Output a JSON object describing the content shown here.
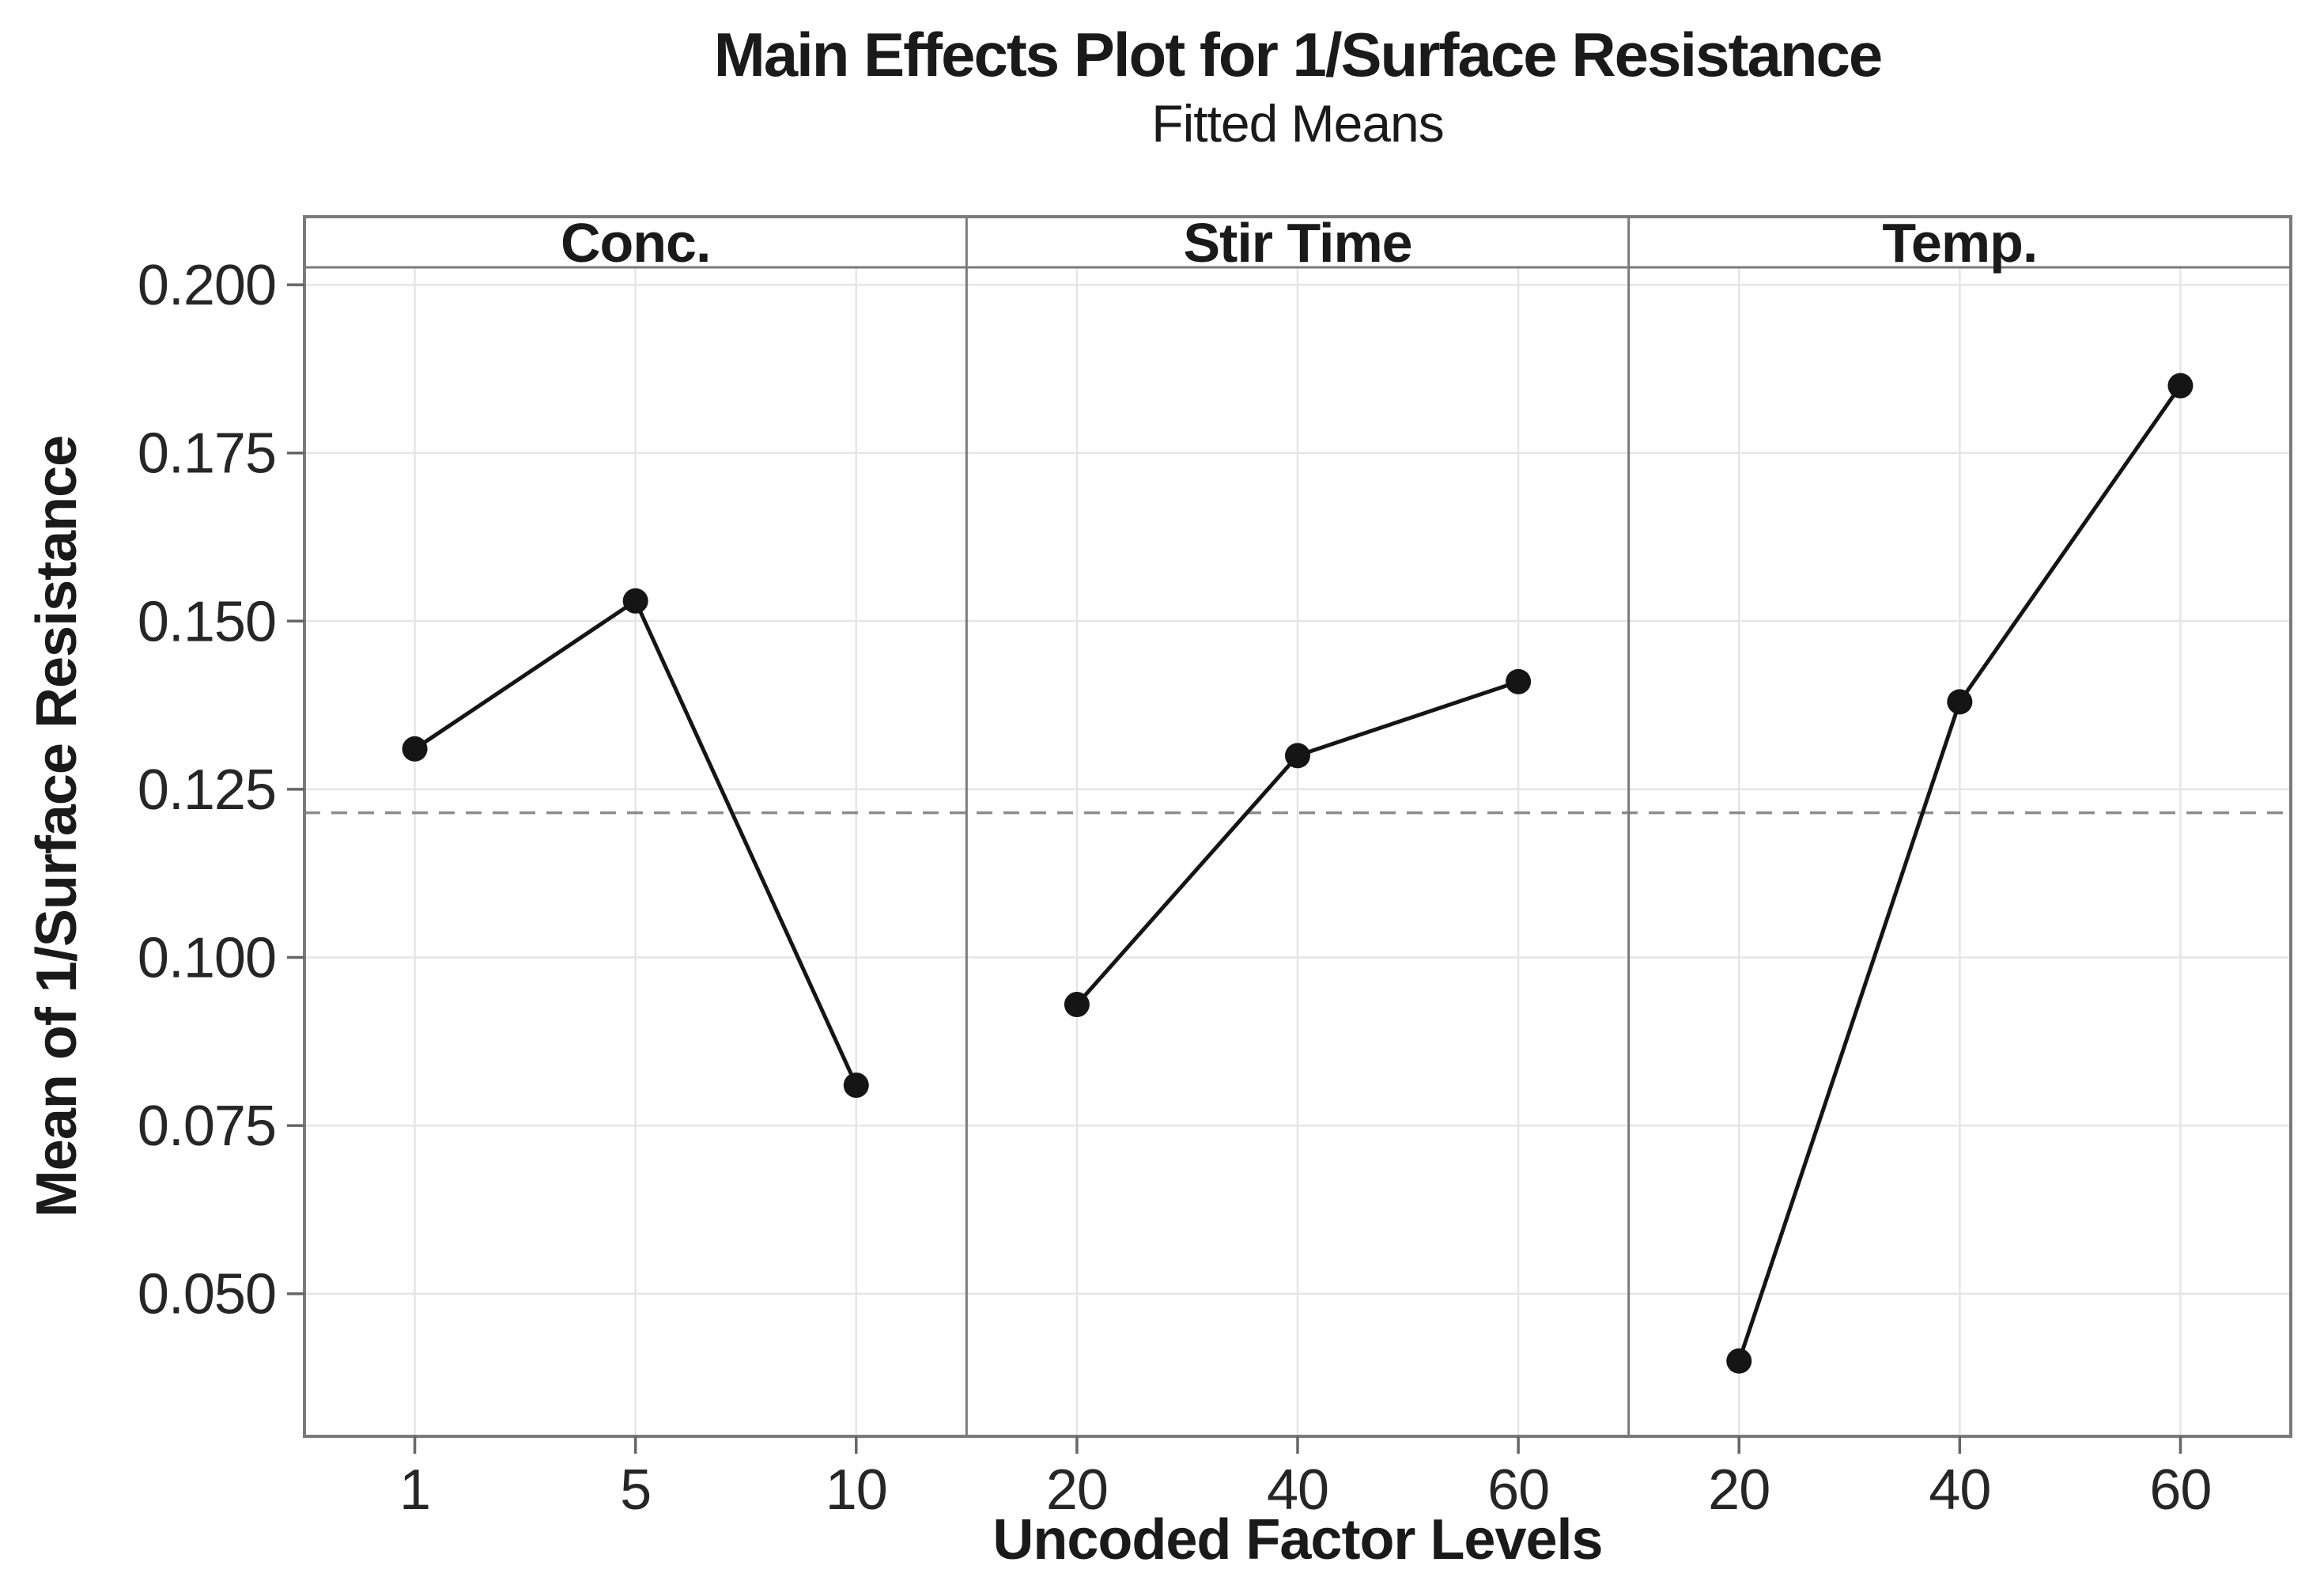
{
  "chart_data": {
    "type": "line",
    "title": "Main Effects Plot for 1/Surface Resistance",
    "subtitle": "Fitted Means",
    "xlabel": "Uncoded Factor Levels",
    "ylabel": "Mean of 1/Surface Resistance",
    "grid": true,
    "legend_position": "none",
    "ylim": [
      0.0288,
      0.2026
    ],
    "yticks": [
      0.05,
      0.075,
      0.1,
      0.125,
      0.15,
      0.175,
      0.2
    ],
    "ytick_labels": [
      "0.050",
      "0.075",
      "0.100",
      "0.125",
      "0.150",
      "0.175",
      "0.200"
    ],
    "reference_line": {
      "value": 0.1215,
      "style": "dashed",
      "description": "overall fitted mean"
    },
    "panels": [
      {
        "label": "Conc.",
        "x": [
          1,
          5,
          10
        ],
        "x_tick_labels": [
          "1",
          "5",
          "10"
        ],
        "values": [
          0.131,
          0.153,
          0.081
        ]
      },
      {
        "label": "Stir Time",
        "x": [
          20,
          40,
          60
        ],
        "x_tick_labels": [
          "20",
          "40",
          "60"
        ],
        "values": [
          0.093,
          0.13,
          0.141
        ]
      },
      {
        "label": "Temp.",
        "x": [
          20,
          40,
          60
        ],
        "x_tick_labels": [
          "20",
          "40",
          "60"
        ],
        "values": [
          0.04,
          0.138,
          0.185
        ]
      }
    ],
    "colors": {
      "background": "#ffffff",
      "series_line": "#151515",
      "marker": "#151515",
      "grid": "#e5e5e5",
      "panel_border": "#7a7a7a",
      "reference_line": "#8c8c8c",
      "tick_mark": "#666666",
      "tick_text": "#262626",
      "text": "#1a1a1a"
    }
  }
}
